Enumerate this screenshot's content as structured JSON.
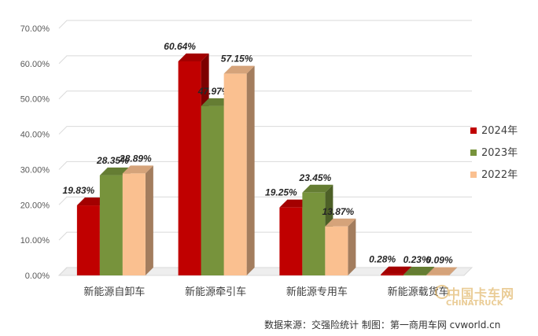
{
  "chart_data": {
    "type": "bar",
    "categories": [
      "新能源自卸车",
      "新能源牵引车",
      "新能源专用车",
      "新能源载货车"
    ],
    "series": [
      {
        "name": "2024年",
        "color": "#c00000",
        "values": [
          19.83,
          60.64,
          19.25,
          0.28
        ],
        "labels": [
          "19.83%",
          "60.64%",
          "19.25%",
          "0.28%"
        ]
      },
      {
        "name": "2023年",
        "color": "#77933c",
        "values": [
          28.35,
          47.97,
          23.45,
          0.23
        ],
        "labels": [
          "28.35%",
          "47.97%",
          "23.45%",
          "0.23%"
        ]
      },
      {
        "name": "2022年",
        "color": "#fac090",
        "values": [
          28.89,
          57.15,
          13.87,
          0.09
        ],
        "labels": [
          "28.89%",
          "57.15%",
          "13.87%",
          "0.09%"
        ]
      }
    ],
    "yticks": [
      "0.00%",
      "10.00%",
      "20.00%",
      "30.00%",
      "40.00%",
      "50.00%",
      "60.00%",
      "70.00%"
    ],
    "ylim": [
      0,
      70
    ],
    "legend_position": "right",
    "grid": true,
    "three_d": true
  },
  "source_note": "数据来源：交强险统计  制图：第一商用车网 cvworld.cn",
  "watermark": {
    "brand": "中国卡车网",
    "sub": "CHINATRUCK"
  }
}
